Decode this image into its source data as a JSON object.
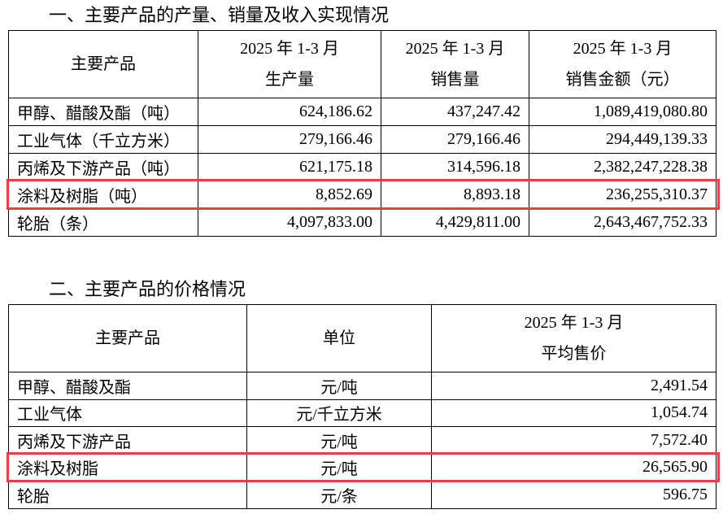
{
  "section1": {
    "title": "一、主要产品的产量、销量及收入实现情况",
    "table": {
      "header": [
        [
          "主要产品"
        ],
        [
          "2025 年 1-3 月",
          "生产量"
        ],
        [
          "2025 年 1-3 月",
          "销售量"
        ],
        [
          "2025 年 1-3 月",
          "销售金额（元）"
        ]
      ],
      "rows": [
        [
          "甲醇、醋酸及酯（吨）",
          "624,186.62",
          "437,247.42",
          "1,089,419,080.80"
        ],
        [
          "工业气体（千立方米）",
          "279,166.46",
          "279,166.46",
          "294,449,139.33"
        ],
        [
          "丙烯及下游产品（吨）",
          "621,175.18",
          "314,596.18",
          "2,382,247,228.38"
        ],
        [
          "涂料及树脂（吨）",
          "8,852.69",
          "8,893.18",
          "236,255,310.37"
        ],
        [
          "轮胎（条）",
          "4,097,833.00",
          "4,429,811.00",
          "2,643,467,752.33"
        ]
      ],
      "highlight_row": 3
    }
  },
  "section2": {
    "title": "二、主要产品的价格情况",
    "table": {
      "header": [
        [
          "主要产品"
        ],
        [
          "单位"
        ],
        [
          "2025 年 1-3 月",
          "平均售价"
        ]
      ],
      "rows": [
        [
          "甲醇、醋酸及酯",
          "元/吨",
          "2,491.54"
        ],
        [
          "工业气体",
          "元/千立方米",
          "1,054.74"
        ],
        [
          "丙烯及下游产品",
          "元/吨",
          "7,572.40"
        ],
        [
          "涂料及树脂",
          "元/吨",
          "26,565.90"
        ],
        [
          "轮胎",
          "元/条",
          "596.75"
        ]
      ],
      "highlight_row": 3
    }
  }
}
